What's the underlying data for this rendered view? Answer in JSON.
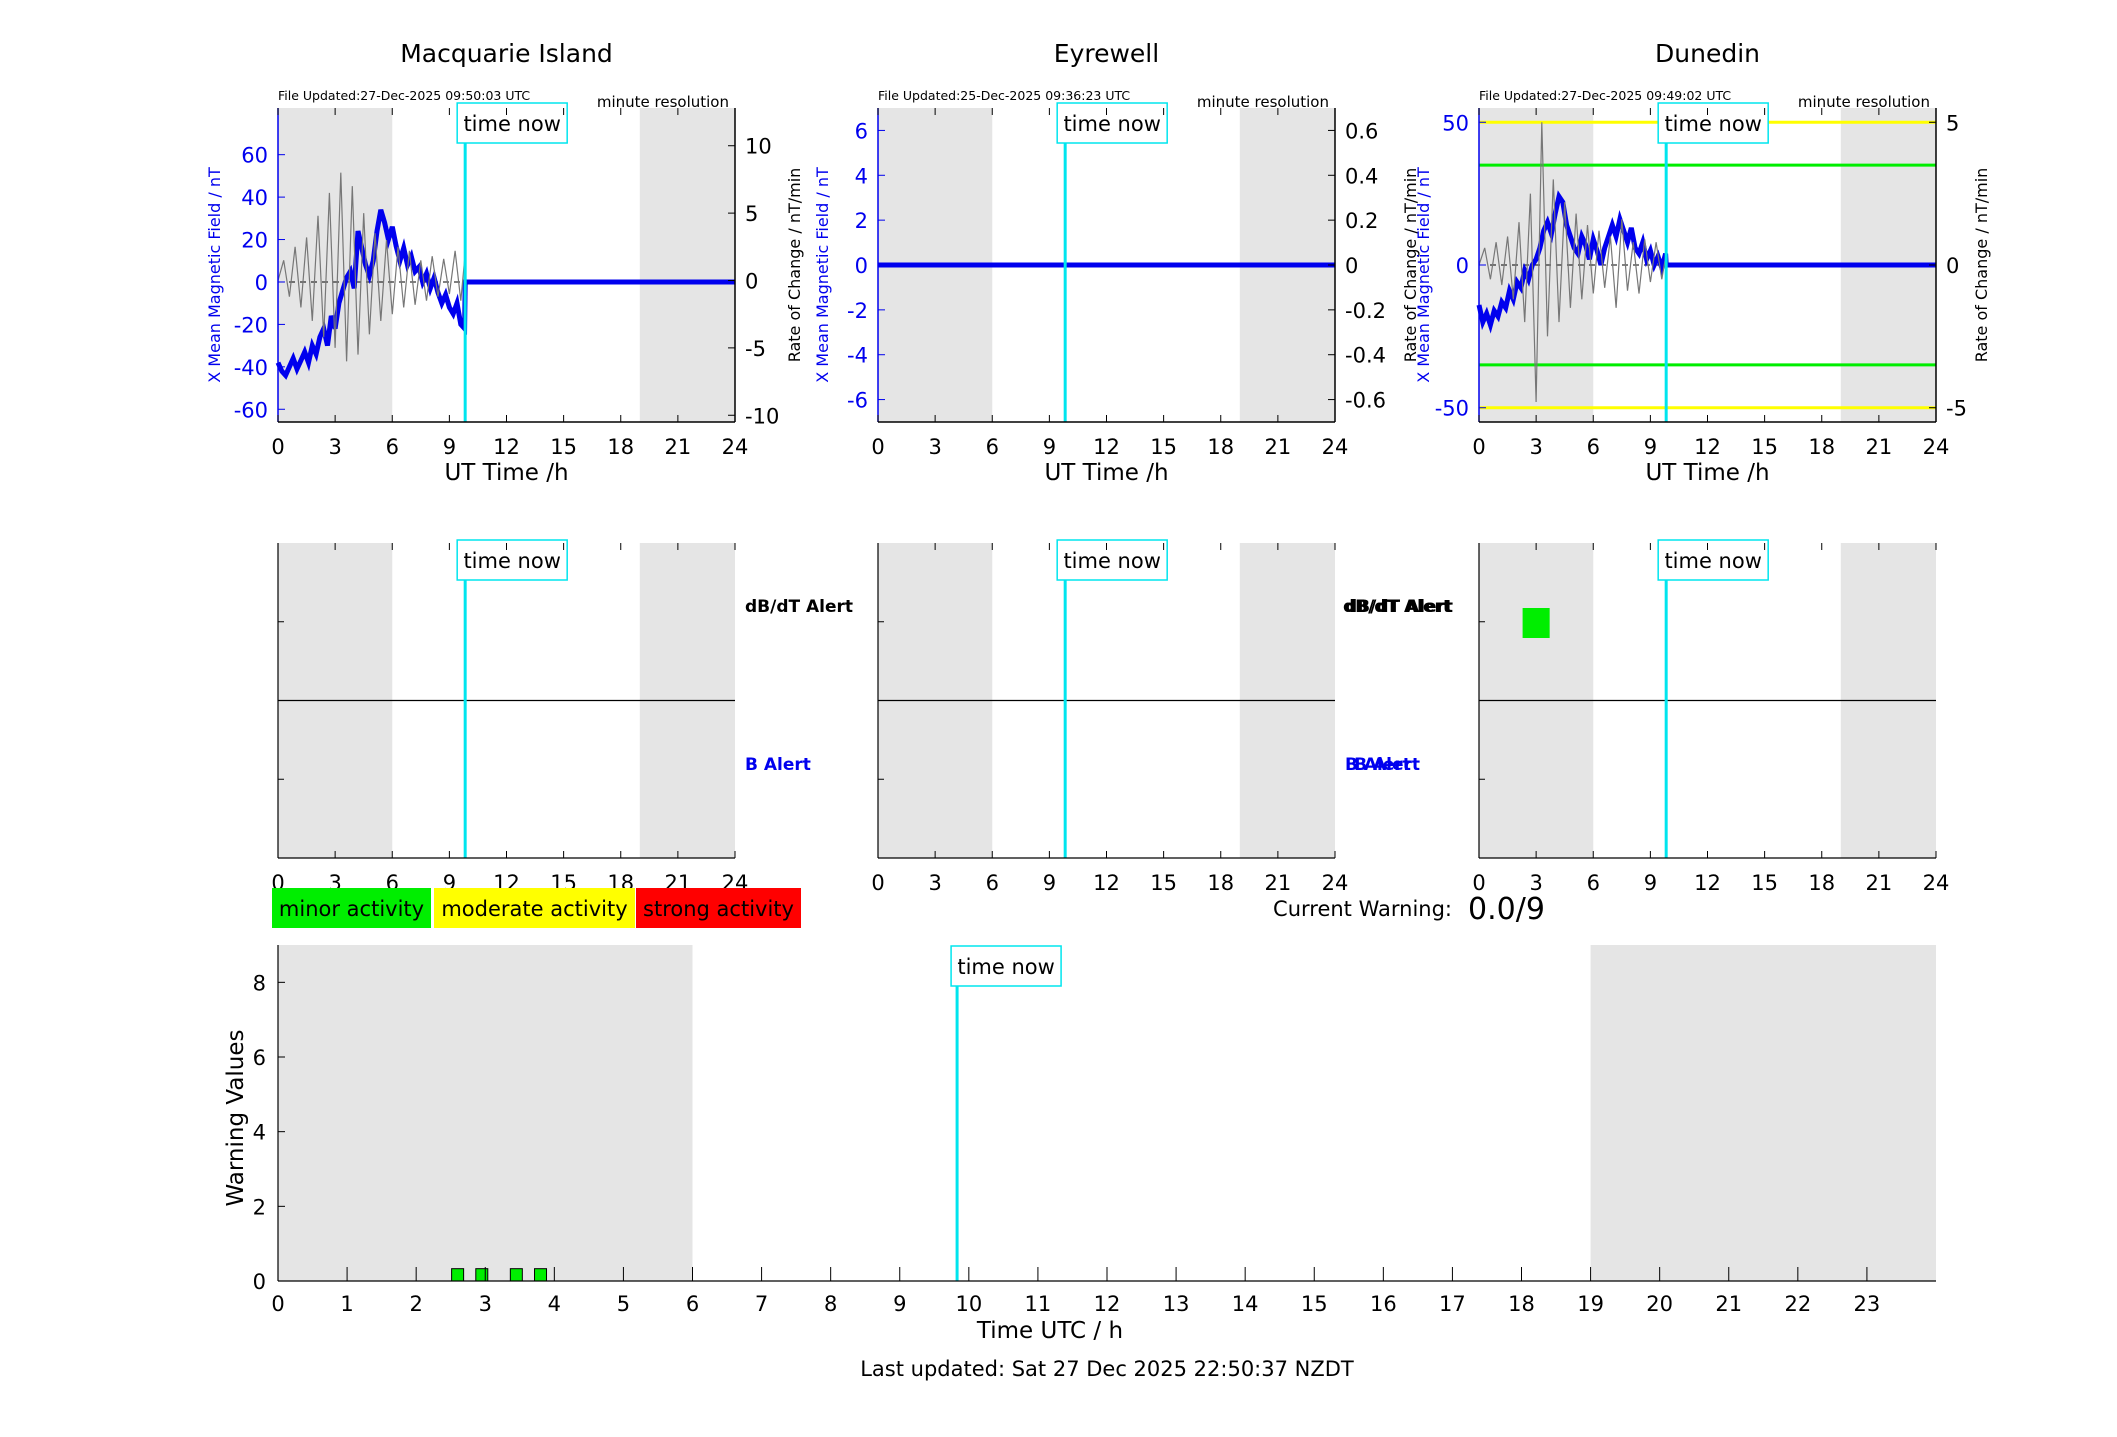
{
  "chart_data": [
    {
      "type": "line",
      "title": "Macquarie Island",
      "file_updated": "File Updated:27-Dec-2025 09:50:03 UTC",
      "resolution": "minute resolution",
      "xlabel": "UT Time /h",
      "ylabel_left": "X Mean Magnetic Field / nT",
      "ylabel_right": "Rate of Change / nT/min",
      "xlim": [
        0,
        24
      ],
      "ylim_left": [
        -66,
        82
      ],
      "ylim_right": [
        -10.5,
        12.8
      ],
      "xticks": [
        0,
        3,
        6,
        9,
        12,
        15,
        18,
        21,
        24
      ],
      "yticks_left": [
        -60,
        -40,
        -20,
        0,
        20,
        40,
        60
      ],
      "yticks_right": [
        -10,
        -5,
        0,
        5,
        10
      ],
      "night_bands": [
        [
          0,
          6
        ],
        [
          19,
          24
        ]
      ],
      "time_now": 9.83,
      "time_now_label": "time now",
      "series": [
        {
          "axis": "left",
          "color": "#0000ee",
          "x": [
            0,
            0.2,
            0.4,
            0.6,
            0.8,
            1.0,
            1.2,
            1.4,
            1.6,
            1.8,
            2.0,
            2.2,
            2.4,
            2.6,
            2.8,
            3.0,
            3.2,
            3.4,
            3.6,
            3.8,
            4.0,
            4.2,
            4.4,
            4.6,
            4.8,
            5.0,
            5.2,
            5.4,
            5.6,
            5.8,
            6.0,
            6.2,
            6.4,
            6.6,
            6.8,
            7.0,
            7.2,
            7.4,
            7.6,
            7.8,
            8.0,
            8.2,
            8.4,
            8.6,
            8.8,
            9.0,
            9.2,
            9.4,
            9.6,
            9.8,
            9.83,
            24
          ],
          "y": [
            -38,
            -42,
            -44,
            -40,
            -36,
            -41,
            -37,
            -33,
            -38,
            -30,
            -34,
            -26,
            -22,
            -30,
            -16,
            -22,
            -10,
            -4,
            2,
            5,
            -3,
            24,
            16,
            8,
            3,
            10,
            24,
            34,
            28,
            20,
            26,
            17,
            10,
            16,
            8,
            12,
            5,
            7,
            0,
            4,
            -3,
            2,
            -5,
            -10,
            -6,
            -12,
            -15,
            -10,
            -20,
            -22,
            0,
            0
          ]
        },
        {
          "axis": "right",
          "color": "#777777",
          "x": [
            0,
            0.3,
            0.6,
            0.9,
            1.2,
            1.5,
            1.8,
            2.1,
            2.4,
            2.7,
            3.0,
            3.3,
            3.6,
            3.9,
            4.2,
            4.5,
            4.8,
            5.1,
            5.4,
            5.7,
            6.0,
            6.3,
            6.6,
            6.9,
            7.2,
            7.5,
            7.8,
            8.1,
            8.4,
            8.7,
            9.0,
            9.3,
            9.6,
            9.83
          ],
          "y": [
            0,
            1.5,
            -1.2,
            2.5,
            -2.0,
            3.2,
            -3.0,
            4.8,
            -4.2,
            6.5,
            -5.0,
            8.0,
            -6.0,
            7.0,
            -5.5,
            5.0,
            -4.0,
            3.5,
            -3.0,
            3.0,
            -2.5,
            2.5,
            -2.0,
            2.2,
            -1.8,
            1.5,
            -1.5,
            1.8,
            -1.2,
            1.6,
            -1.0,
            2.2,
            -1.5,
            2.0
          ]
        }
      ],
      "hlines": []
    },
    {
      "type": "line",
      "title": "Eyrewell",
      "file_updated": "File Updated:25-Dec-2025 09:36:23 UTC",
      "resolution": "minute resolution",
      "xlabel": "UT Time /h",
      "ylabel_left": "X Mean Magnetic Field / nT",
      "ylabel_right": "Rate of Change / nT/min",
      "xlim": [
        0,
        24
      ],
      "ylim_left": [
        -7,
        7
      ],
      "ylim_right": [
        -0.7,
        0.7
      ],
      "xticks": [
        0,
        3,
        6,
        9,
        12,
        15,
        18,
        21,
        24
      ],
      "yticks_left": [
        -6,
        -4,
        -2,
        0,
        2,
        4,
        6
      ],
      "yticks_right": [
        -0.6,
        -0.4,
        -0.2,
        0,
        0.2,
        0.4,
        0.6
      ],
      "night_bands": [
        [
          0,
          6
        ],
        [
          19,
          24
        ]
      ],
      "time_now": 9.83,
      "time_now_label": "time now",
      "series": [
        {
          "axis": "left",
          "color": "#0000ee",
          "x": [
            0,
            24
          ],
          "y": [
            0,
            0
          ]
        }
      ],
      "hlines": []
    },
    {
      "type": "line",
      "title": "Dunedin",
      "file_updated": "File Updated:27-Dec-2025 09:49:02 UTC",
      "resolution": "minute resolution",
      "xlabel": "UT Time /h",
      "ylabel_left": "X Mean Magnetic Field / nT",
      "ylabel_right": "Rate of Change / nT/min",
      "xlim": [
        0,
        24
      ],
      "ylim_left": [
        -55,
        55
      ],
      "ylim_right": [
        -5.5,
        5.5
      ],
      "xticks": [
        0,
        3,
        6,
        9,
        12,
        15,
        18,
        21,
        24
      ],
      "yticks_left": [
        -50,
        0,
        50
      ],
      "yticks_right": [
        -5,
        0,
        5
      ],
      "night_bands": [
        [
          0,
          6
        ],
        [
          19,
          24
        ]
      ],
      "time_now": 9.83,
      "time_now_label": "time now",
      "series": [
        {
          "axis": "left",
          "color": "#0000ee",
          "x": [
            0,
            0.2,
            0.4,
            0.6,
            0.8,
            1.0,
            1.2,
            1.4,
            1.6,
            1.8,
            2.0,
            2.2,
            2.4,
            2.6,
            2.8,
            3.0,
            3.2,
            3.4,
            3.6,
            3.8,
            4.0,
            4.2,
            4.4,
            4.6,
            4.8,
            5.0,
            5.2,
            5.4,
            5.6,
            5.8,
            6.0,
            6.2,
            6.4,
            6.6,
            6.8,
            7.0,
            7.2,
            7.4,
            7.6,
            7.8,
            8.0,
            8.2,
            8.4,
            8.6,
            8.8,
            9.0,
            9.2,
            9.4,
            9.6,
            9.8,
            9.83,
            24
          ],
          "y": [
            -14,
            -20,
            -17,
            -21,
            -16,
            -18,
            -13,
            -15,
            -9,
            -12,
            -6,
            -8,
            -2,
            -5,
            0,
            2,
            6,
            12,
            15,
            11,
            18,
            24,
            22,
            14,
            10,
            6,
            4,
            10,
            7,
            2,
            9,
            5,
            0,
            6,
            10,
            14,
            10,
            16,
            12,
            8,
            13,
            6,
            4,
            8,
            2,
            5,
            0,
            3,
            -1,
            4,
            0,
            0
          ]
        },
        {
          "axis": "right",
          "color": "#777777",
          "x": [
            0,
            0.3,
            0.6,
            0.9,
            1.2,
            1.5,
            1.8,
            2.1,
            2.4,
            2.7,
            3.0,
            3.3,
            3.6,
            3.9,
            4.2,
            4.5,
            4.8,
            5.1,
            5.4,
            5.7,
            6.0,
            6.3,
            6.6,
            6.9,
            7.2,
            7.5,
            7.8,
            8.1,
            8.4,
            8.7,
            9.0,
            9.3,
            9.6,
            9.83
          ],
          "y": [
            0,
            0.6,
            -0.5,
            0.8,
            -0.7,
            1.0,
            -1.2,
            1.5,
            -2.0,
            2.5,
            -4.8,
            5.0,
            -2.5,
            3.0,
            -2.0,
            2.2,
            -1.5,
            1.8,
            -1.2,
            1.4,
            -1.0,
            1.2,
            -0.8,
            1.0,
            -1.5,
            1.6,
            -0.9,
            0.8,
            -1.0,
            0.9,
            -0.6,
            0.8,
            -0.5,
            0.4
          ]
        }
      ],
      "hlines": [
        {
          "y": 50,
          "color": "#ffff00"
        },
        {
          "y": 35,
          "color": "#00ee00"
        },
        {
          "y": -35,
          "color": "#00ee00"
        },
        {
          "y": -50,
          "color": "#ffff00"
        }
      ]
    },
    {
      "type": "bar",
      "panel": "alert-macquarie",
      "xlim": [
        0,
        24
      ],
      "xticks": [
        0,
        3,
        6,
        9,
        12,
        15,
        18,
        21,
        24
      ],
      "night_bands": [
        [
          0,
          6
        ],
        [
          19,
          24
        ]
      ],
      "time_now": 9.83,
      "time_now_label": "time now",
      "labels": [
        "dB/dT Alert",
        "B Alert"
      ],
      "dbdt_alerts": [],
      "b_alerts": []
    },
    {
      "type": "bar",
      "panel": "alert-eyrewell",
      "xlim": [
        0,
        24
      ],
      "xticks": [
        0,
        3,
        6,
        9,
        12,
        15,
        18,
        21,
        24
      ],
      "night_bands": [
        [
          0,
          6
        ],
        [
          19,
          24
        ]
      ],
      "time_now": 9.83,
      "time_now_label": "time now",
      "labels": [
        "dB/dT Alert",
        "B Alert"
      ],
      "dbdt_alerts": [],
      "b_alerts": []
    },
    {
      "type": "bar",
      "panel": "alert-dunedin",
      "xlim": [
        0,
        24
      ],
      "xticks": [
        0,
        3,
        6,
        9,
        12,
        15,
        18,
        21,
        24
      ],
      "night_bands": [
        [
          0,
          6
        ],
        [
          19,
          24
        ]
      ],
      "time_now": 9.83,
      "time_now_label": "time now",
      "labels": [],
      "dbdt_alerts": [
        2.5,
        2.83,
        3.17,
        3.5
      ],
      "b_alerts": []
    },
    {
      "type": "bar",
      "panel": "warning-values",
      "xlabel": "Time UTC / h",
      "ylabel": "Warning Values",
      "xlim": [
        0,
        24
      ],
      "ylim": [
        0,
        9
      ],
      "xticks": [
        0,
        1,
        2,
        3,
        4,
        5,
        6,
        7,
        8,
        9,
        10,
        11,
        12,
        13,
        14,
        15,
        16,
        17,
        18,
        19,
        20,
        21,
        22,
        23
      ],
      "yticks": [
        0,
        2,
        4,
        6,
        8
      ],
      "night_bands": [
        [
          0,
          6
        ],
        [
          19,
          24
        ]
      ],
      "time_now": 9.83,
      "time_now_label": "time now",
      "x": [
        2.6,
        2.95,
        3.45,
        3.8
      ],
      "values": [
        0.33,
        0.33,
        0.33,
        0.33
      ],
      "bar_color": "#00ee00"
    }
  ],
  "legend": {
    "items": [
      {
        "label": "minor activity",
        "color": "#00ee00"
      },
      {
        "label": "moderate activity",
        "color": "#ffff00"
      },
      {
        "label": "strong activity",
        "color": "#ff0000"
      }
    ]
  },
  "current_warning": {
    "label": "Current Warning:",
    "value": "0.0/9"
  },
  "footer": {
    "last_updated": "Last updated: Sat 27 Dec 2025 22:50:37 NZDT"
  }
}
